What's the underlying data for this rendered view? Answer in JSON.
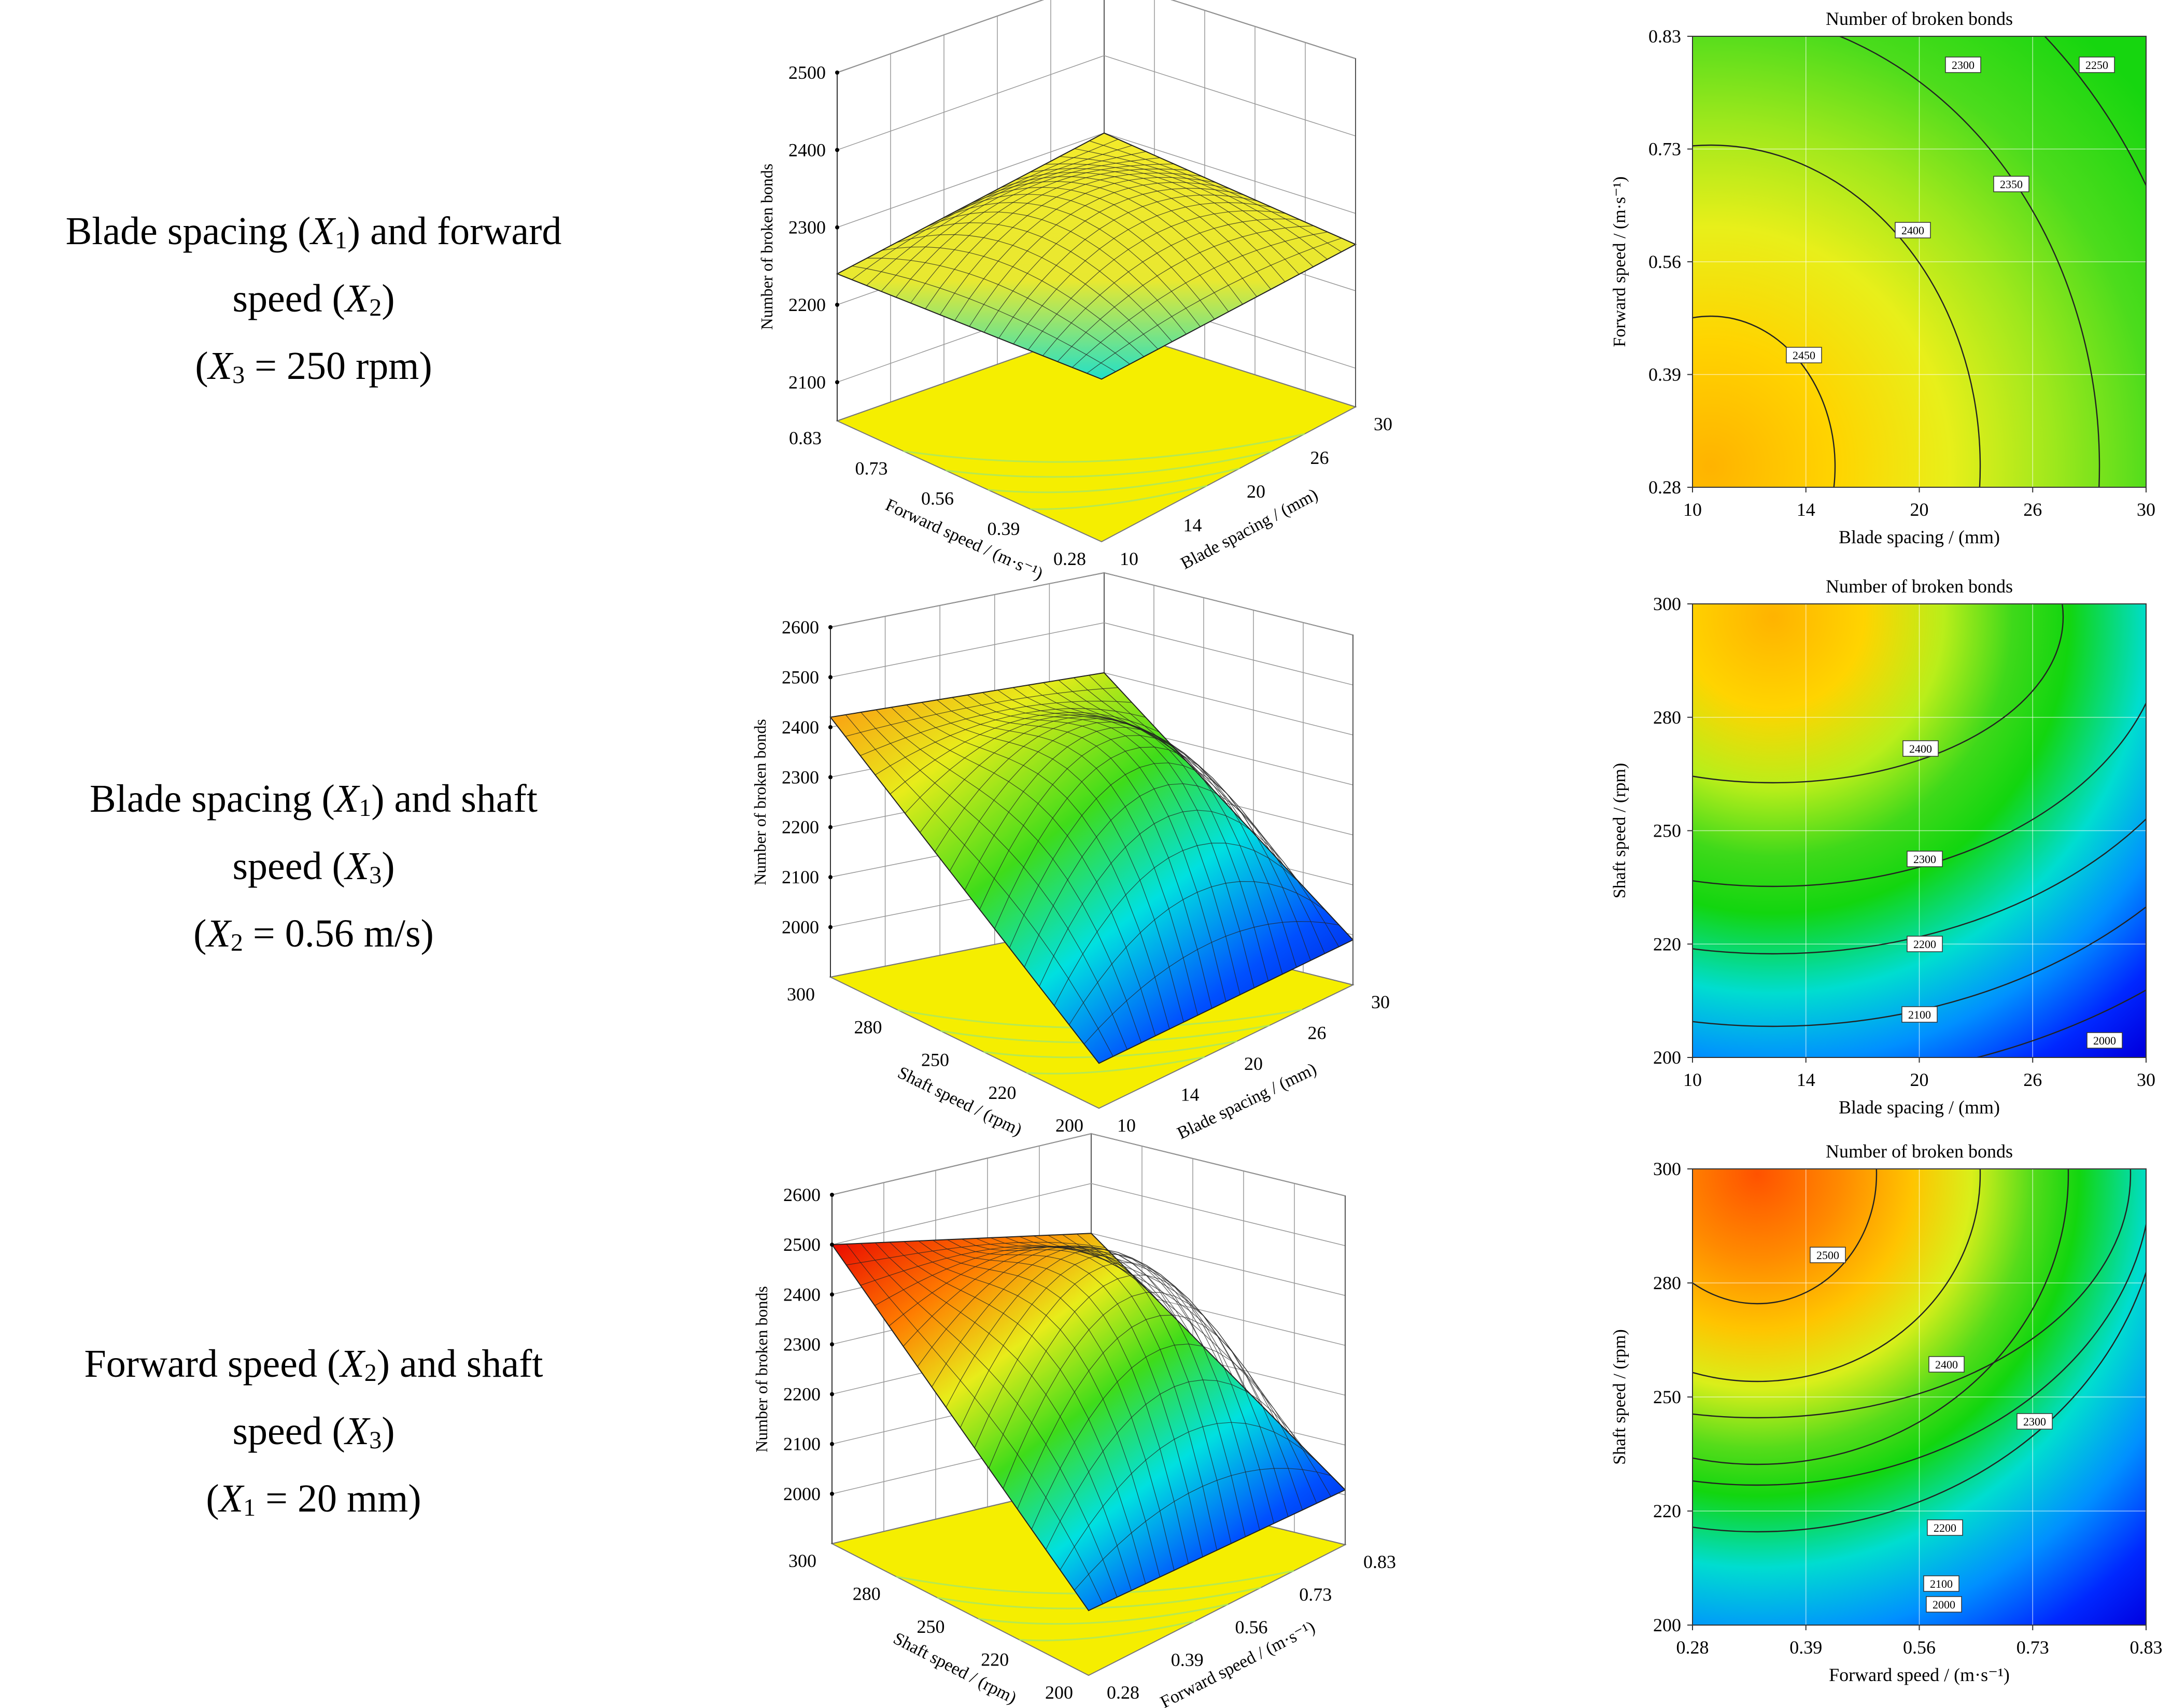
{
  "rows": [
    {
      "label": {
        "line1_pre": "Blade spacing (",
        "line1_var": "X",
        "line1_sub": "1",
        "line1_post": ") and forward",
        "line2_pre": "speed (",
        "line2_var": "X",
        "line2_sub": "2",
        "line2_post": ")",
        "line3_pre": "(",
        "line3_var": "X",
        "line3_sub": "3",
        "line3_post": " = 250 rpm)"
      }
    },
    {
      "label": {
        "line1_pre": "Blade spacing (",
        "line1_var": "X",
        "line1_sub": "1",
        "line1_post": ") and shaft",
        "line2_pre": "speed (",
        "line2_var": "X",
        "line2_sub": "3",
        "line2_post": ")",
        "line3_pre": "(",
        "line3_var": "X",
        "line3_sub": "2",
        "line3_post": " = 0.56 m/s)"
      }
    },
    {
      "label": {
        "line1_pre": "Forward speed (",
        "line1_var": "X",
        "line1_sub": "2",
        "line1_post": ") and shaft",
        "line2_pre": "speed (",
        "line2_var": "X",
        "line2_sub": "3",
        "line2_post": ")",
        "line3_pre": "(",
        "line3_var": "X",
        "line3_sub": "1",
        "line3_post": " = 20 mm)"
      }
    }
  ],
  "chart_data": [
    {
      "type": "surface",
      "id": "surface-1",
      "zlabel": "Number of  broken bonds",
      "xlabel": "Blade spacing / (mm)",
      "ylabel": "Forward speed / (m·s⁻¹)",
      "x_ticks": [
        "10",
        "14",
        "20",
        "26",
        "30"
      ],
      "y_ticks": [
        "0.28",
        "0.39",
        "0.56",
        "0.73",
        "0.83"
      ],
      "z_ticks": [
        "2100",
        "2200",
        "2300",
        "2400",
        "2500"
      ],
      "zlim": [
        2050,
        2500
      ],
      "corner_values": {
        "near": 2260,
        "right": 2260,
        "left": 2240,
        "back": 2300
      },
      "peak_value": 2350
    },
    {
      "type": "contour",
      "id": "contour-1",
      "title": "Number of  broken bonds",
      "xlabel": "Blade spacing / (mm)",
      "ylabel": "Forward speed / (m·s⁻¹)",
      "x_ticks": [
        "10",
        "14",
        "20",
        "26",
        "30"
      ],
      "y_ticks": [
        "0.28",
        "0.39",
        "0.56",
        "0.73",
        "0.83"
      ],
      "contour_levels": [
        "2250",
        "2300",
        "2350",
        "2400",
        "2450"
      ],
      "max_value": 2470,
      "colors": [
        "#ffb300",
        "#ffd400",
        "#e8ef1a",
        "#9fe81c",
        "#4cdc1c",
        "#16d60f"
      ]
    },
    {
      "type": "surface",
      "id": "surface-2",
      "zlabel": "Number of  broken bonds",
      "xlabel": "Blade spacing / (mm)",
      "ylabel": "Shaft speed / (rpm)",
      "x_ticks": [
        "10",
        "14",
        "20",
        "26",
        "30"
      ],
      "y_ticks": [
        "200",
        "220",
        "250",
        "280",
        "300"
      ],
      "z_ticks": [
        "2000",
        "2100",
        "2200",
        "2300",
        "2400",
        "2500",
        "2600"
      ],
      "zlim": [
        1900,
        2600
      ],
      "corner_values": {
        "near": 1990,
        "right": 1990,
        "left": 2420,
        "back": 2400
      },
      "peak_value": 2460
    },
    {
      "type": "contour",
      "id": "contour-2",
      "title": "Number of  broken bonds",
      "xlabel": "Blade spacing / (mm)",
      "ylabel": "Shaft speed / (rpm)",
      "x_ticks": [
        "10",
        "14",
        "20",
        "26",
        "30"
      ],
      "y_ticks": [
        "200",
        "220",
        "250",
        "280",
        "300"
      ],
      "contour_levels": [
        "2000",
        "2100",
        "2200",
        "2300",
        "2400"
      ],
      "max_value": 2460,
      "colors": [
        "#ffb300",
        "#ffd400",
        "#b9ee1a",
        "#3fd91a",
        "#12d60f",
        "#00ddd0",
        "#0090ff",
        "#0028ff",
        "#0000e0"
      ]
    },
    {
      "type": "surface",
      "id": "surface-3",
      "zlabel": "Number of  broken bonds",
      "xlabel": "Forward speed / (m·s⁻¹)",
      "ylabel": "Shaft speed / (rpm)",
      "x_ticks": [
        "0.28",
        "0.39",
        "0.56",
        "0.73",
        "0.83"
      ],
      "y_ticks": [
        "200",
        "220",
        "250",
        "280",
        "300"
      ],
      "z_ticks": [
        "2000",
        "2100",
        "2200",
        "2300",
        "2400",
        "2500",
        "2600"
      ],
      "zlim": [
        1900,
        2600
      ],
      "corner_values": {
        "near": 2030,
        "right": 2010,
        "left": 2500,
        "back": 2400
      },
      "peak_value": 2540
    },
    {
      "type": "contour",
      "id": "contour-3",
      "title": "Number of  broken bonds",
      "xlabel": "Forward speed / (m·s⁻¹)",
      "ylabel": "Shaft speed / (rpm)",
      "x_ticks": [
        "0.28",
        "0.39",
        "0.56",
        "0.73",
        "0.83"
      ],
      "y_ticks": [
        "200",
        "220",
        "250",
        "280",
        "300"
      ],
      "contour_levels": [
        "2000",
        "2100",
        "2200",
        "2300",
        "2400",
        "2500"
      ],
      "max_value": 2560,
      "colors": [
        "#ff5200",
        "#ff8a00",
        "#ffc400",
        "#d9ef1a",
        "#56dc1a",
        "#12d60f",
        "#00ddd0",
        "#0090ff",
        "#0028ff",
        "#0000e0"
      ]
    }
  ]
}
